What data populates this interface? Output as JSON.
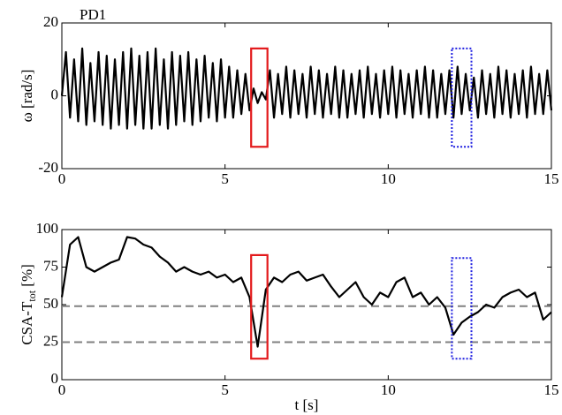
{
  "chart_data": [
    {
      "type": "line",
      "annotation": "PD1",
      "ylabel": "ω [rad/s]",
      "xlim": [
        0,
        15
      ],
      "xticks": [
        0,
        5,
        10,
        15
      ],
      "ylim": [
        -20,
        20
      ],
      "yticks": [
        -20,
        0,
        20
      ],
      "color": "#000000",
      "x": [
        0,
        0.125,
        0.25,
        0.375,
        0.5,
        0.625,
        0.75,
        0.875,
        1,
        1.125,
        1.25,
        1.375,
        1.5,
        1.625,
        1.75,
        1.875,
        2,
        2.125,
        2.25,
        2.375,
        2.5,
        2.625,
        2.75,
        2.875,
        3,
        3.125,
        3.25,
        3.375,
        3.5,
        3.625,
        3.75,
        3.875,
        4,
        4.125,
        4.25,
        4.375,
        4.5,
        4.625,
        4.75,
        4.875,
        5,
        5.125,
        5.25,
        5.375,
        5.5,
        5.625,
        5.75,
        5.875,
        6,
        6.125,
        6.25,
        6.375,
        6.5,
        6.625,
        6.75,
        6.875,
        7,
        7.125,
        7.25,
        7.375,
        7.5,
        7.625,
        7.75,
        7.875,
        8,
        8.125,
        8.25,
        8.375,
        8.5,
        8.625,
        8.75,
        8.875,
        9,
        9.125,
        9.25,
        9.375,
        9.5,
        9.625,
        9.75,
        9.875,
        10,
        10.125,
        10.25,
        10.375,
        10.5,
        10.625,
        10.75,
        10.875,
        11,
        11.125,
        11.25,
        11.375,
        11.5,
        11.625,
        11.75,
        11.875,
        12,
        12.125,
        12.25,
        12.375,
        12.5,
        12.625,
        12.75,
        12.875,
        13,
        13.125,
        13.25,
        13.375,
        13.5,
        13.625,
        13.75,
        13.875,
        14,
        14.125,
        14.25,
        14.375,
        14.5,
        14.625,
        14.75,
        14.875,
        15
      ],
      "values": [
        0,
        12,
        -6,
        10,
        -7,
        13,
        -8,
        9,
        -7,
        12,
        -8,
        11,
        -9,
        10,
        -8,
        12,
        -9,
        13,
        -8,
        11,
        -9,
        12,
        -9,
        13,
        -8,
        10,
        -9,
        12,
        -8,
        11,
        -7,
        12,
        -8,
        10,
        -7,
        11,
        -6,
        9,
        -7,
        10,
        -6,
        8,
        -6,
        7,
        -5,
        6,
        -4,
        2,
        -2,
        1,
        -1,
        7,
        -6,
        6,
        -5,
        8,
        -6,
        7,
        -5,
        6,
        -6,
        8,
        -5,
        7,
        -6,
        6,
        -5,
        8,
        -6,
        7,
        -6,
        6,
        -5,
        7,
        -6,
        8,
        -5,
        6,
        -6,
        7,
        -5,
        8,
        -6,
        7,
        -5,
        6,
        -6,
        7,
        -5,
        8,
        -6,
        7,
        -6,
        6,
        -5,
        7,
        -6,
        8,
        -5,
        6,
        -4,
        5,
        -6,
        7,
        -5,
        6,
        -6,
        8,
        -5,
        7,
        -6,
        6,
        -5,
        7,
        -6,
        8,
        -5,
        6,
        -5,
        7,
        -4
      ],
      "highlights": [
        {
          "color": "#e31a1c",
          "style": "solid",
          "x": [
            5.8,
            6.3
          ],
          "y": [
            -14,
            13
          ]
        },
        {
          "color": "#1f1fe0",
          "style": "dotted",
          "x": [
            11.95,
            12.55
          ],
          "y": [
            -14,
            13
          ]
        }
      ]
    },
    {
      "type": "line",
      "ylabel_parts": [
        "CSA-T",
        "tot",
        " [%]"
      ],
      "xlabel": "t [s]",
      "xlim": [
        0,
        15
      ],
      "xticks": [
        0,
        5,
        10,
        15
      ],
      "ylim": [
        0,
        100
      ],
      "yticks": [
        0,
        25,
        50,
        75,
        100
      ],
      "color": "#000000",
      "x": [
        0,
        0.25,
        0.5,
        0.75,
        1,
        1.25,
        1.5,
        1.75,
        2,
        2.25,
        2.5,
        2.75,
        3,
        3.25,
        3.5,
        3.75,
        4,
        4.25,
        4.5,
        4.75,
        5,
        5.25,
        5.5,
        5.75,
        6,
        6.25,
        6.5,
        6.75,
        7,
        7.25,
        7.5,
        7.75,
        8,
        8.25,
        8.5,
        8.75,
        9,
        9.25,
        9.5,
        9.75,
        10,
        10.25,
        10.5,
        10.75,
        11,
        11.25,
        11.5,
        11.75,
        12,
        12.25,
        12.5,
        12.75,
        13,
        13.25,
        13.5,
        13.75,
        14,
        14.25,
        14.5,
        14.75,
        15
      ],
      "values": [
        55,
        90,
        95,
        75,
        72,
        75,
        78,
        80,
        95,
        94,
        90,
        88,
        82,
        78,
        72,
        75,
        72,
        70,
        72,
        68,
        70,
        65,
        68,
        55,
        22,
        60,
        68,
        65,
        70,
        72,
        66,
        68,
        70,
        62,
        55,
        60,
        65,
        55,
        50,
        58,
        55,
        65,
        68,
        55,
        58,
        50,
        55,
        48,
        30,
        38,
        42,
        45,
        50,
        48,
        55,
        58,
        60,
        55,
        58,
        40,
        45
      ],
      "hlines": [
        49,
        25
      ],
      "hline_color": "#808080",
      "highlights": [
        {
          "color": "#e31a1c",
          "style": "solid",
          "x": [
            5.8,
            6.3
          ],
          "y": [
            14,
            83
          ]
        },
        {
          "color": "#1f1fe0",
          "style": "dotted",
          "x": [
            11.95,
            12.55
          ],
          "y": [
            14,
            81
          ]
        }
      ]
    }
  ]
}
